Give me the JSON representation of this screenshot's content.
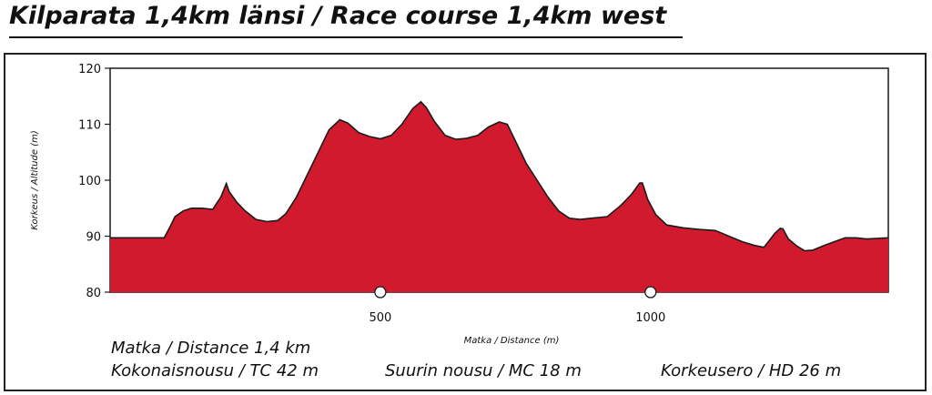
{
  "title": "Kilparata 1,4km länsi / Race course 1,4km west",
  "stats": {
    "distance": "Matka / Distance   1,4 km",
    "total_climb": "Kokonaisnousu / TC   42 m",
    "max_climb": "Suurin nousu / MC   18 m",
    "height_diff": "Korkeusero / HD   26 m"
  },
  "colors": {
    "fill": "#d21a2f",
    "line": "#1a1a1a"
  },
  "chart_data": {
    "type": "area",
    "xlabel": "Matka / Distance (m)",
    "ylabel": "Korkeus / Altitude (m)",
    "xlim": [
      0,
      1440
    ],
    "ylim": [
      80,
      120
    ],
    "xticks": [
      500,
      1000
    ],
    "yticks": [
      80,
      90,
      100,
      110,
      120
    ],
    "grid": false,
    "x": [
      0,
      100,
      110,
      120,
      135,
      150,
      170,
      190,
      205,
      215,
      220,
      235,
      250,
      270,
      290,
      310,
      325,
      345,
      365,
      385,
      405,
      425,
      440,
      460,
      480,
      500,
      520,
      540,
      560,
      575,
      585,
      600,
      620,
      640,
      660,
      680,
      700,
      720,
      735,
      750,
      770,
      790,
      810,
      830,
      850,
      870,
      890,
      920,
      945,
      965,
      980,
      985,
      995,
      1010,
      1030,
      1060,
      1090,
      1120,
      1150,
      1170,
      1190,
      1210,
      1230,
      1240,
      1245,
      1255,
      1270,
      1285,
      1300,
      1320,
      1340,
      1360,
      1380,
      1400,
      1440
    ],
    "y": [
      89.7,
      89.7,
      91.5,
      93.5,
      94.5,
      95,
      95,
      94.8,
      97,
      99.4,
      98,
      96,
      94.5,
      93,
      92.6,
      92.8,
      94,
      97,
      101,
      105,
      109,
      110.8,
      110.2,
      108.5,
      107.8,
      107.4,
      108,
      110,
      112.8,
      114,
      113,
      110.5,
      108,
      107.3,
      107.5,
      108,
      109.5,
      110.4,
      110,
      107,
      103,
      100,
      97,
      94.5,
      93.2,
      93,
      93.2,
      93.5,
      95.5,
      97.5,
      99.5,
      99.5,
      96.5,
      93.8,
      92,
      91.5,
      91.2,
      91,
      89.8,
      89,
      88.4,
      88,
      90.5,
      91.4,
      91.3,
      89.5,
      88.3,
      87.4,
      87.5,
      88.3,
      89,
      89.7,
      89.7,
      89.5,
      89.7
    ]
  }
}
